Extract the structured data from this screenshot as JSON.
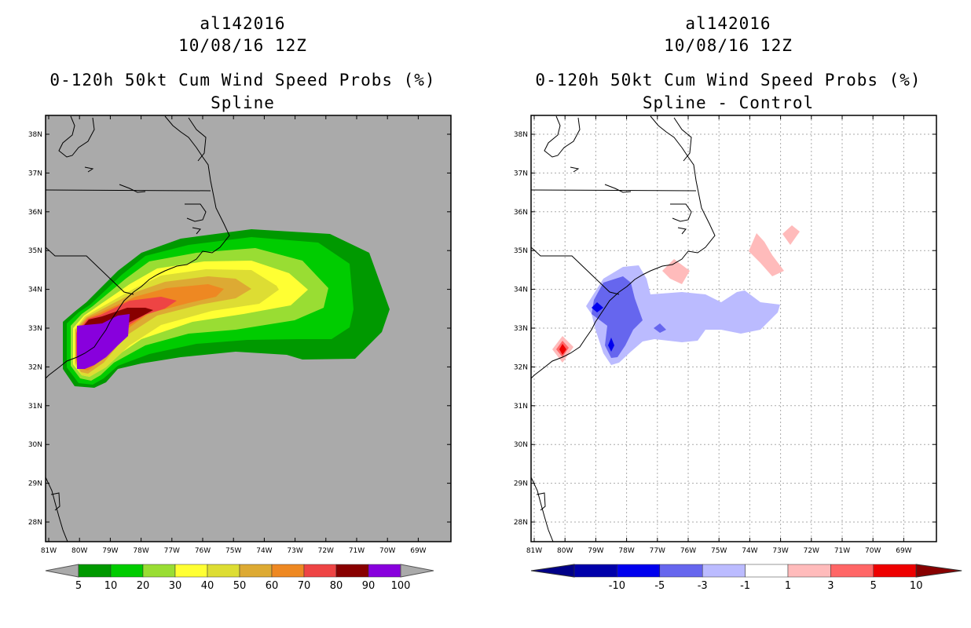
{
  "left_panel": {
    "storm_id": "al142016",
    "datetime": "10/08/16 12Z",
    "product": "0-120h 50kt Cum Wind Speed Probs (%)",
    "method": "Spline",
    "colorbar": {
      "labels": [
        "5",
        "10",
        "20",
        "30",
        "40",
        "50",
        "60",
        "70",
        "80",
        "90",
        "100"
      ],
      "colors": [
        "#009900",
        "#00cc00",
        "#99dd33",
        "#ffff33",
        "#dddd33",
        "#ddaa33",
        "#ee8822",
        "#ee4444",
        "#880000",
        "#8800dd"
      ],
      "background": "#aaaaaa"
    }
  },
  "right_panel": {
    "storm_id": "al142016",
    "datetime": "10/08/16 12Z",
    "product": "0-120h 50kt Cum Wind Speed Probs (%)",
    "method": "Spline - Control",
    "colorbar": {
      "labels": [
        "-10",
        "-5",
        "-3",
        "-1",
        "1",
        "3",
        "5",
        "10"
      ],
      "colors": [
        "#0000aa",
        "#0000ee",
        "#6666ee",
        "#bbbbff",
        "#ffffff",
        "#ffbbbb",
        "#ff6666",
        "#ee0000"
      ],
      "ends": [
        "#000088",
        "#880000"
      ]
    }
  },
  "axes": {
    "lat_labels": [
      "38N",
      "37N",
      "36N",
      "35N",
      "34N",
      "33N",
      "32N",
      "31N",
      "30N",
      "29N",
      "28N"
    ],
    "lon_labels": [
      "81W",
      "80W",
      "79W",
      "78W",
      "77W",
      "76W",
      "75W",
      "74W",
      "73W",
      "72W",
      "71W",
      "70W",
      "69W"
    ]
  }
}
